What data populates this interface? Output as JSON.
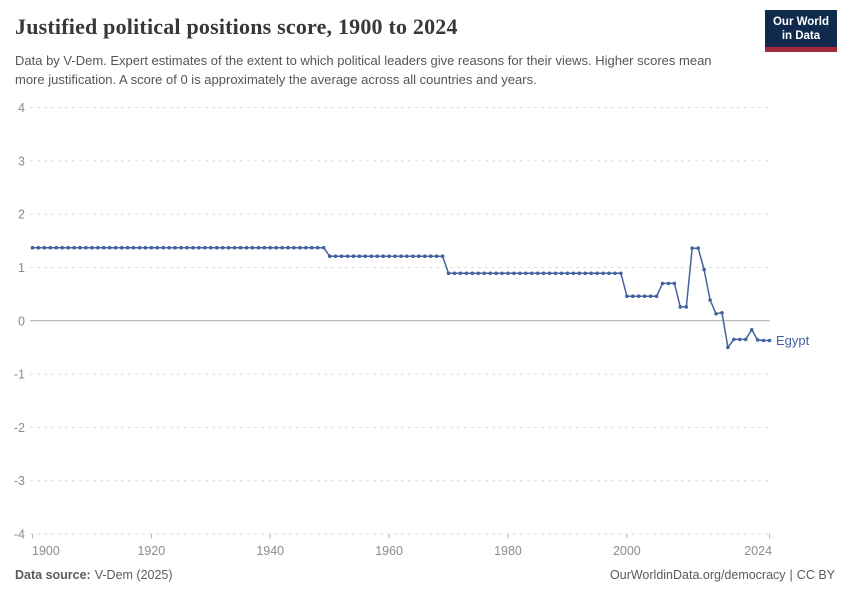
{
  "header": {
    "title": "Justified political positions score, 1900 to 2024",
    "subtitle": "Data by V-Dem. Expert estimates of the extent to which political leaders give reasons for their views. Higher scores mean more justification. A score of 0 is approximately the average across all countries and years.",
    "logo": {
      "line1": "Our World",
      "line2": "in Data",
      "bg_color": "#102a4e",
      "accent_color": "#a3293a"
    }
  },
  "footer": {
    "source_label": "Data source:",
    "source_value": "V-Dem (2025)",
    "url_text": "OurWorldinData.org/democracy",
    "separator": "|",
    "license_text": "CC BY"
  },
  "chart_data": {
    "type": "line",
    "title": "Justified political positions score, 1900 to 2024",
    "xlabel": "",
    "ylabel": "",
    "xlim": [
      1900,
      2024
    ],
    "ylim": [
      -4,
      4
    ],
    "x_ticks": [
      1900,
      1920,
      1940,
      1960,
      1980,
      2000,
      2024
    ],
    "y_ticks": [
      4,
      3,
      2,
      1,
      0,
      -1,
      -2,
      -3,
      -4
    ],
    "grid": "horizontal-dashed",
    "zero_line": true,
    "legend_position": "end-of-line-label",
    "colors": {
      "series": "#44639e",
      "gridline": "#dedede",
      "zero_line": "#a8a8a8",
      "tick_label": "#8c8c8c",
      "tick_mark": "#b3b3b3"
    },
    "series": [
      {
        "name": "Egypt",
        "color": "#44639e",
        "points": [
          [
            1900,
            1.37
          ],
          [
            1901,
            1.37
          ],
          [
            1902,
            1.37
          ],
          [
            1903,
            1.37
          ],
          [
            1904,
            1.37
          ],
          [
            1905,
            1.37
          ],
          [
            1906,
            1.37
          ],
          [
            1907,
            1.37
          ],
          [
            1908,
            1.37
          ],
          [
            1909,
            1.37
          ],
          [
            1910,
            1.37
          ],
          [
            1911,
            1.37
          ],
          [
            1912,
            1.37
          ],
          [
            1913,
            1.37
          ],
          [
            1914,
            1.37
          ],
          [
            1915,
            1.37
          ],
          [
            1916,
            1.37
          ],
          [
            1917,
            1.37
          ],
          [
            1918,
            1.37
          ],
          [
            1919,
            1.37
          ],
          [
            1920,
            1.37
          ],
          [
            1921,
            1.37
          ],
          [
            1922,
            1.37
          ],
          [
            1923,
            1.37
          ],
          [
            1924,
            1.37
          ],
          [
            1925,
            1.37
          ],
          [
            1926,
            1.37
          ],
          [
            1927,
            1.37
          ],
          [
            1928,
            1.37
          ],
          [
            1929,
            1.37
          ],
          [
            1930,
            1.37
          ],
          [
            1931,
            1.37
          ],
          [
            1932,
            1.37
          ],
          [
            1933,
            1.37
          ],
          [
            1934,
            1.37
          ],
          [
            1935,
            1.37
          ],
          [
            1936,
            1.37
          ],
          [
            1937,
            1.37
          ],
          [
            1938,
            1.37
          ],
          [
            1939,
            1.37
          ],
          [
            1940,
            1.37
          ],
          [
            1941,
            1.37
          ],
          [
            1942,
            1.37
          ],
          [
            1943,
            1.37
          ],
          [
            1944,
            1.37
          ],
          [
            1945,
            1.37
          ],
          [
            1946,
            1.37
          ],
          [
            1947,
            1.37
          ],
          [
            1948,
            1.37
          ],
          [
            1949,
            1.37
          ],
          [
            1950,
            1.21
          ],
          [
            1951,
            1.21
          ],
          [
            1952,
            1.21
          ],
          [
            1953,
            1.21
          ],
          [
            1954,
            1.21
          ],
          [
            1955,
            1.21
          ],
          [
            1956,
            1.21
          ],
          [
            1957,
            1.21
          ],
          [
            1958,
            1.21
          ],
          [
            1959,
            1.21
          ],
          [
            1960,
            1.21
          ],
          [
            1961,
            1.21
          ],
          [
            1962,
            1.21
          ],
          [
            1963,
            1.21
          ],
          [
            1964,
            1.21
          ],
          [
            1965,
            1.21
          ],
          [
            1966,
            1.21
          ],
          [
            1967,
            1.21
          ],
          [
            1968,
            1.21
          ],
          [
            1969,
            1.21
          ],
          [
            1970,
            0.89
          ],
          [
            1971,
            0.89
          ],
          [
            1972,
            0.89
          ],
          [
            1973,
            0.89
          ],
          [
            1974,
            0.89
          ],
          [
            1975,
            0.89
          ],
          [
            1976,
            0.89
          ],
          [
            1977,
            0.89
          ],
          [
            1978,
            0.89
          ],
          [
            1979,
            0.89
          ],
          [
            1980,
            0.89
          ],
          [
            1981,
            0.89
          ],
          [
            1982,
            0.89
          ],
          [
            1983,
            0.89
          ],
          [
            1984,
            0.89
          ],
          [
            1985,
            0.89
          ],
          [
            1986,
            0.89
          ],
          [
            1987,
            0.89
          ],
          [
            1988,
            0.89
          ],
          [
            1989,
            0.89
          ],
          [
            1990,
            0.89
          ],
          [
            1991,
            0.89
          ],
          [
            1992,
            0.89
          ],
          [
            1993,
            0.89
          ],
          [
            1994,
            0.89
          ],
          [
            1995,
            0.89
          ],
          [
            1996,
            0.89
          ],
          [
            1997,
            0.89
          ],
          [
            1998,
            0.89
          ],
          [
            1999,
            0.89
          ],
          [
            2000,
            0.46
          ],
          [
            2001,
            0.46
          ],
          [
            2002,
            0.46
          ],
          [
            2003,
            0.46
          ],
          [
            2004,
            0.46
          ],
          [
            2005,
            0.46
          ],
          [
            2006,
            0.7
          ],
          [
            2007,
            0.7
          ],
          [
            2008,
            0.7
          ],
          [
            2009,
            0.26
          ],
          [
            2010,
            0.26
          ],
          [
            2011,
            1.36
          ],
          [
            2012,
            1.36
          ],
          [
            2013,
            0.96
          ],
          [
            2014,
            0.39
          ],
          [
            2015,
            0.13
          ],
          [
            2016,
            0.15
          ],
          [
            2017,
            -0.5
          ],
          [
            2018,
            -0.35
          ],
          [
            2019,
            -0.35
          ],
          [
            2020,
            -0.35
          ],
          [
            2021,
            -0.17
          ],
          [
            2022,
            -0.36
          ],
          [
            2023,
            -0.37
          ],
          [
            2024,
            -0.37
          ]
        ]
      }
    ]
  }
}
